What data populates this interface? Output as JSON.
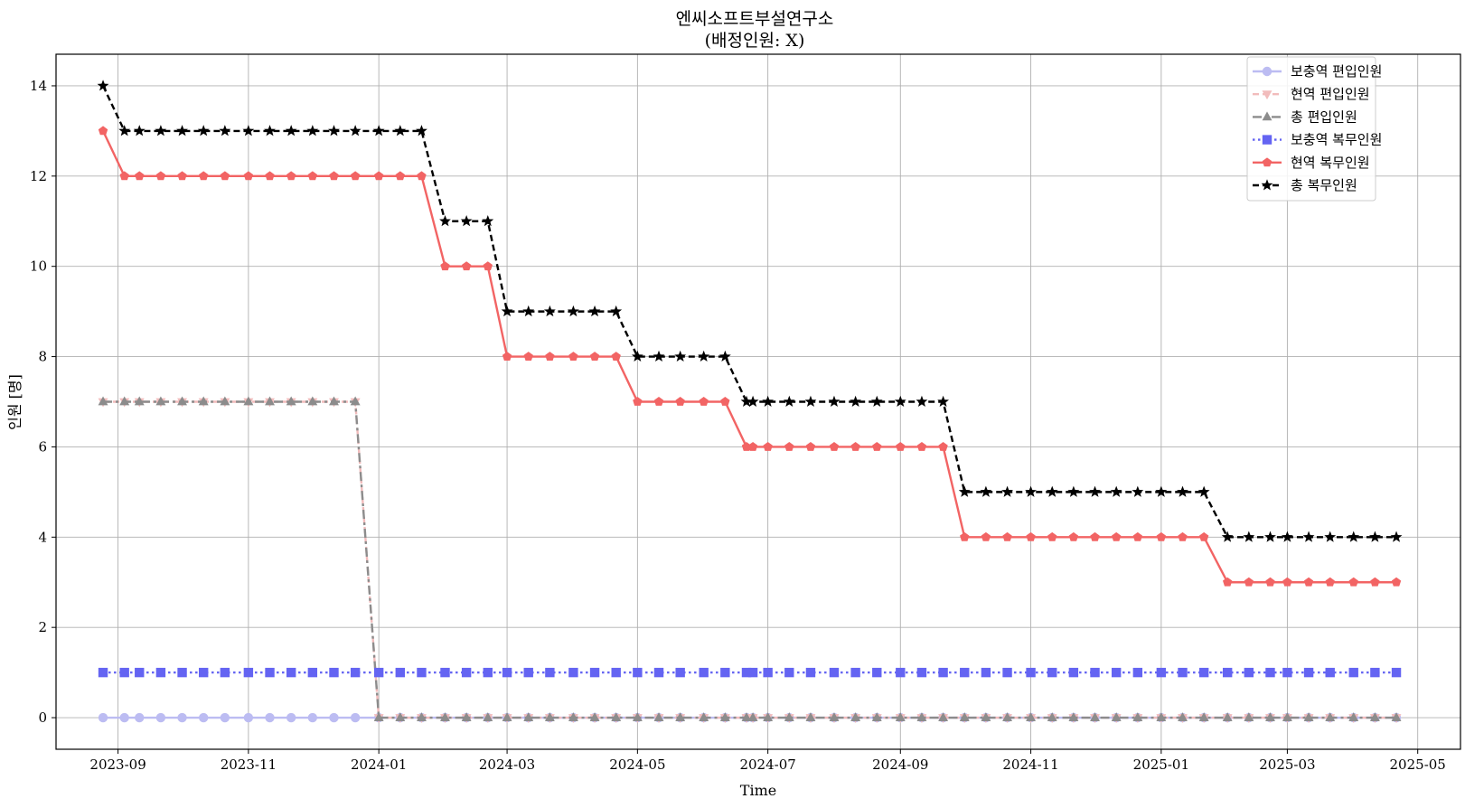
{
  "chart_data": {
    "type": "line",
    "title": "엔씨소프트부설연구소",
    "subtitle": "(배정인원: X)",
    "xlabel": "Time",
    "ylabel": "인원 [명]",
    "ylim": [
      -0.7,
      14.7
    ],
    "xlim": [
      "2023-08-03",
      "2025-05-21"
    ],
    "grid": true,
    "legend_position": "top-right",
    "x_ticks": [
      "2023-09",
      "2023-11",
      "2024-01",
      "2024-03",
      "2024-05",
      "2024-07",
      "2024-09",
      "2024-11",
      "2025-01",
      "2025-03",
      "2025-05"
    ],
    "y_ticks": [
      "0",
      "2",
      "4",
      "6",
      "8",
      "10",
      "12",
      "14"
    ],
    "x": [
      "2023-08-25",
      "2023-09-04",
      "2023-09-11",
      "2023-09-21",
      "2023-10-01",
      "2023-10-11",
      "2023-10-21",
      "2023-11-01",
      "2023-11-11",
      "2023-11-21",
      "2023-12-01",
      "2023-12-11",
      "2023-12-21",
      "2024-01-01",
      "2024-01-11",
      "2024-01-21",
      "2024-02-01",
      "2024-02-11",
      "2024-02-21",
      "2024-03-01",
      "2024-03-11",
      "2024-03-21",
      "2024-04-01",
      "2024-04-11",
      "2024-04-21",
      "2024-05-01",
      "2024-05-11",
      "2024-05-21",
      "2024-06-01",
      "2024-06-11",
      "2024-06-21",
      "2024-06-24",
      "2024-07-01",
      "2024-07-11",
      "2024-07-21",
      "2024-08-01",
      "2024-08-11",
      "2024-08-21",
      "2024-09-01",
      "2024-09-11",
      "2024-09-21",
      "2024-10-01",
      "2024-10-11",
      "2024-10-21",
      "2024-11-01",
      "2024-11-11",
      "2024-11-21",
      "2024-12-01",
      "2024-12-11",
      "2024-12-21",
      "2025-01-01",
      "2025-01-11",
      "2025-01-21",
      "2025-02-01",
      "2025-02-11",
      "2025-02-21",
      "2025-03-01",
      "2025-03-11",
      "2025-03-21",
      "2025-04-01",
      "2025-04-11",
      "2025-04-21"
    ],
    "series": [
      {
        "name": "보충역 편입인원",
        "color": "#bcbcf2",
        "dash": "solid",
        "marker": "circle",
        "values": [
          0,
          0,
          0,
          0,
          0,
          0,
          0,
          0,
          0,
          0,
          0,
          0,
          0,
          0,
          0,
          0,
          0,
          0,
          0,
          0,
          0,
          0,
          0,
          0,
          0,
          0,
          0,
          0,
          0,
          0,
          0,
          0,
          0,
          0,
          0,
          0,
          0,
          0,
          0,
          0,
          0,
          0,
          0,
          0,
          0,
          0,
          0,
          0,
          0,
          0,
          0,
          0,
          0,
          0,
          0,
          0,
          0,
          0,
          0,
          0,
          0,
          0
        ]
      },
      {
        "name": "현역 편입인원",
        "color": "#f2bcbc",
        "dash": "dashed",
        "marker": "triangle-down",
        "values": [
          7,
          7,
          7,
          7,
          7,
          7,
          7,
          7,
          7,
          7,
          7,
          7,
          7,
          0,
          0,
          0,
          0,
          0,
          0,
          0,
          0,
          0,
          0,
          0,
          0,
          0,
          0,
          0,
          0,
          0,
          0,
          0,
          0,
          0,
          0,
          0,
          0,
          0,
          0,
          0,
          0,
          0,
          0,
          0,
          0,
          0,
          0,
          0,
          0,
          0,
          0,
          0,
          0,
          0,
          0,
          0,
          0,
          0,
          0,
          0,
          0,
          0
        ]
      },
      {
        "name": "총 편입인원",
        "color": "#8c8c8c",
        "dash": "dashdot",
        "marker": "triangle-up",
        "values": [
          7,
          7,
          7,
          7,
          7,
          7,
          7,
          7,
          7,
          7,
          7,
          7,
          7,
          0,
          0,
          0,
          0,
          0,
          0,
          0,
          0,
          0,
          0,
          0,
          0,
          0,
          0,
          0,
          0,
          0,
          0,
          0,
          0,
          0,
          0,
          0,
          0,
          0,
          0,
          0,
          0,
          0,
          0,
          0,
          0,
          0,
          0,
          0,
          0,
          0,
          0,
          0,
          0,
          0,
          0,
          0,
          0,
          0,
          0,
          0,
          0,
          0
        ]
      },
      {
        "name": "보충역 복무인원",
        "color": "#6464f2",
        "dash": "dotted",
        "marker": "square",
        "values": [
          1,
          1,
          1,
          1,
          1,
          1,
          1,
          1,
          1,
          1,
          1,
          1,
          1,
          1,
          1,
          1,
          1,
          1,
          1,
          1,
          1,
          1,
          1,
          1,
          1,
          1,
          1,
          1,
          1,
          1,
          1,
          1,
          1,
          1,
          1,
          1,
          1,
          1,
          1,
          1,
          1,
          1,
          1,
          1,
          1,
          1,
          1,
          1,
          1,
          1,
          1,
          1,
          1,
          1,
          1,
          1,
          1,
          1,
          1,
          1,
          1,
          1
        ]
      },
      {
        "name": "현역 복무인원",
        "color": "#f26464",
        "dash": "solid",
        "marker": "pentagon",
        "values": [
          13,
          12,
          12,
          12,
          12,
          12,
          12,
          12,
          12,
          12,
          12,
          12,
          12,
          12,
          12,
          12,
          10,
          10,
          10,
          8,
          8,
          8,
          8,
          8,
          8,
          7,
          7,
          7,
          7,
          7,
          6,
          6,
          6,
          6,
          6,
          6,
          6,
          6,
          6,
          6,
          6,
          4,
          4,
          4,
          4,
          4,
          4,
          4,
          4,
          4,
          4,
          4,
          4,
          3,
          3,
          3,
          3,
          3,
          3,
          3,
          3,
          3
        ]
      },
      {
        "name": "총 복무인원",
        "color": "#000000",
        "dash": "dashed",
        "marker": "star",
        "values": [
          14,
          13,
          13,
          13,
          13,
          13,
          13,
          13,
          13,
          13,
          13,
          13,
          13,
          13,
          13,
          13,
          11,
          11,
          11,
          9,
          9,
          9,
          9,
          9,
          9,
          8,
          8,
          8,
          8,
          8,
          7,
          7,
          7,
          7,
          7,
          7,
          7,
          7,
          7,
          7,
          7,
          5,
          5,
          5,
          5,
          5,
          5,
          5,
          5,
          5,
          5,
          5,
          5,
          4,
          4,
          4,
          4,
          4,
          4,
          4,
          4,
          4
        ]
      }
    ]
  }
}
